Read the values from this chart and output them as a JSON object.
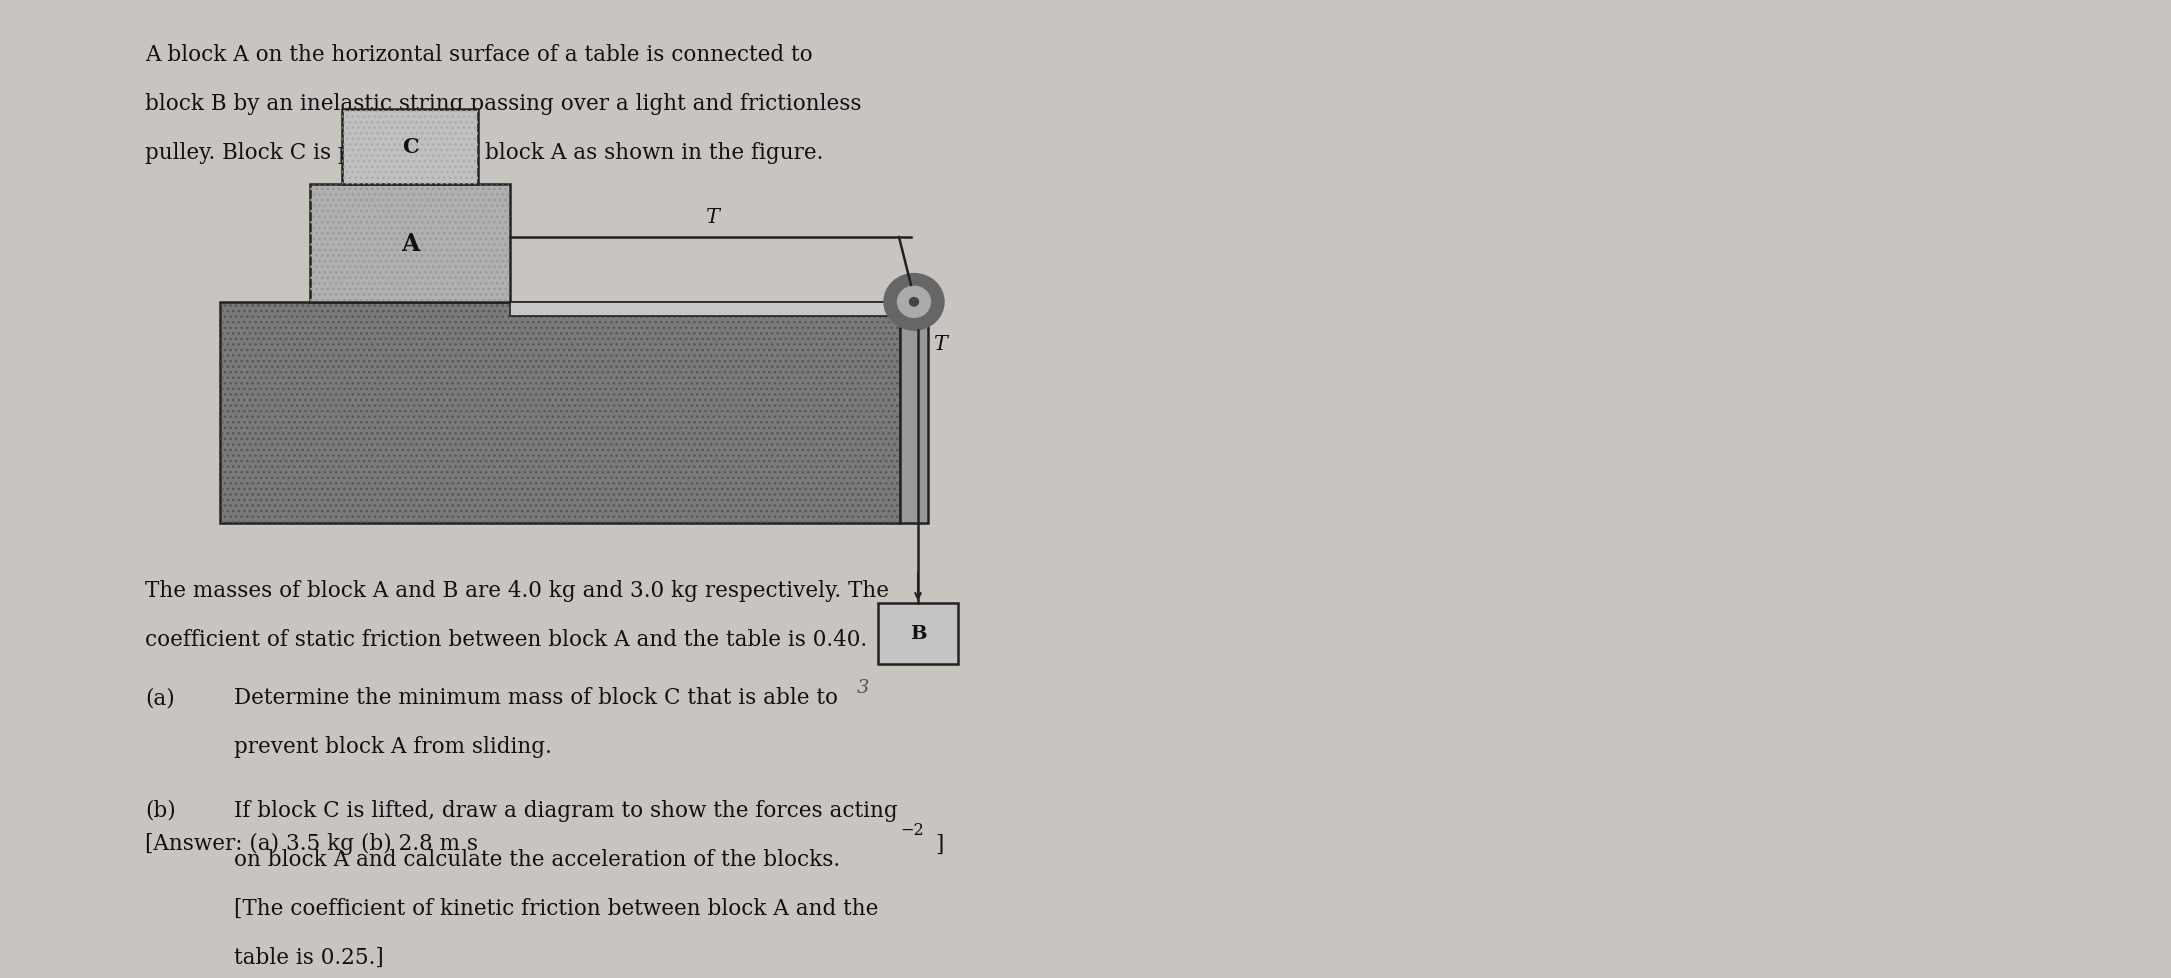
{
  "bg_color": "#c8c4c0",
  "paper_color": "#dedad6",
  "text_color": "#111111",
  "intro_text_line1": "A block A on the horizontal surface of a table is connected to",
  "intro_text_line2": "block B by an inelastic string passing over a light and frictionless",
  "intro_text_line3": "pulley. Block C is put on top of block A as shown in the figure.",
  "body_line1": "The masses of block A and B are 4.0 kg and 3.0 kg respectively. The",
  "body_line2": "coefficient of static friction between block A and the table is 0.40.",
  "part_a_label": "(a)",
  "part_a_text1": "Determine the minimum mass of block C that is able to",
  "part_a_text2": "prevent block A from sliding.",
  "part_b_label": "(b)",
  "part_b_text1": "If block C is lifted, draw a diagram to show the forces acting",
  "part_b_text2": "on block A and calculate the acceleration of the blocks.",
  "part_b_text3": "[The coefficient of kinetic friction between block A and the",
  "part_b_text4": "table is 0.25.]",
  "answer_text": "[Answer: (a) 3.5 kg (b) 2.8 m s",
  "answer_sup": "−2",
  "answer_close": "]",
  "table_color": "#7a7a7a",
  "block_A_color": "#b0b0b0",
  "block_C_color": "#c0c0c0",
  "block_B_color": "#c4c4c4",
  "pulley_color": "#666666",
  "string_color": "#222222",
  "wall_color": "#999999",
  "faded_right_color": "#b0aaa8"
}
